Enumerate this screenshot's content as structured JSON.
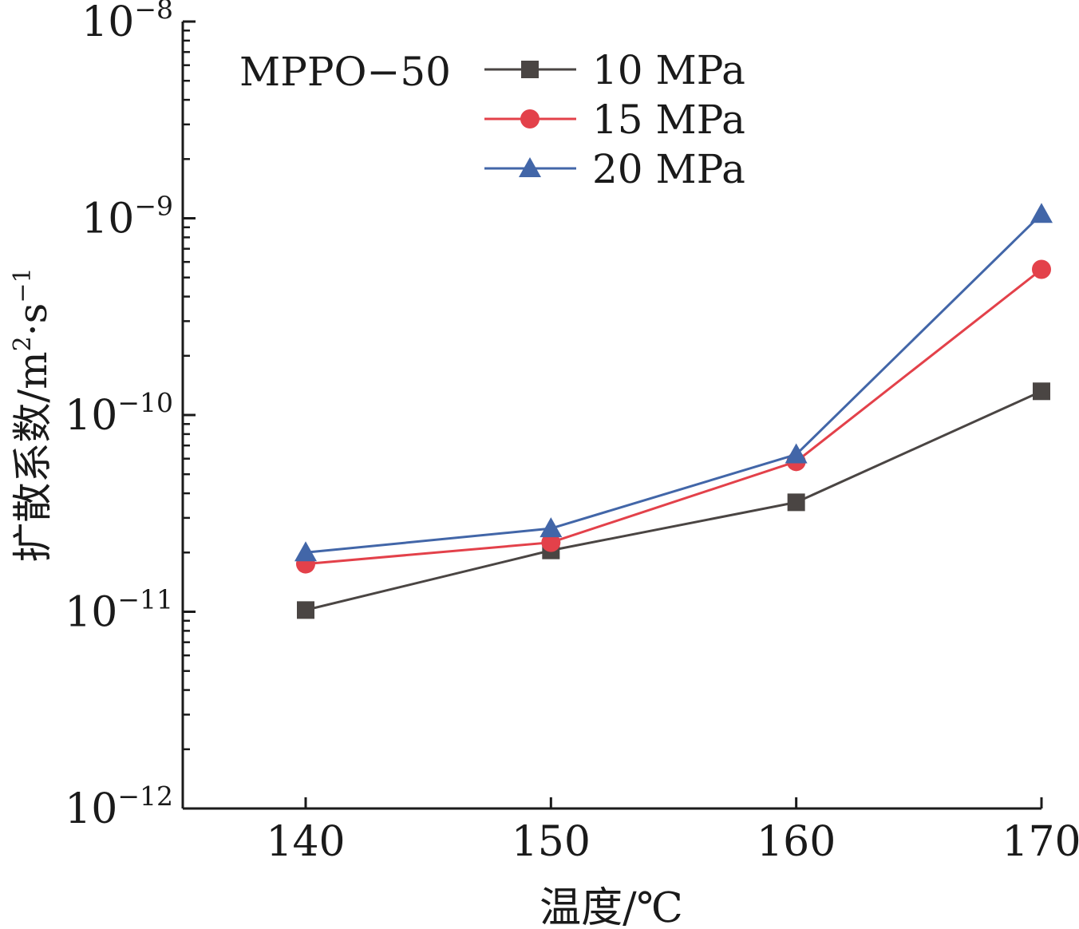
{
  "chart_data": {
    "type": "line",
    "annotation": "MPPO−50",
    "xlabel": "温度/℃",
    "ylabel_main": "扩散系数/m",
    "ylabel_sup1": "2",
    "ylabel_mid": "·s",
    "ylabel_sup2": "−1",
    "yscale": "log",
    "xlim": [
      135,
      170
    ],
    "ylim": [
      1e-12,
      1e-08
    ],
    "x": [
      140,
      150,
      160,
      170
    ],
    "x_tick_labels": [
      "140",
      "150",
      "160",
      "170"
    ],
    "y_ticks": [
      {
        "value": 1e-08,
        "base": "10",
        "exp": "−8"
      },
      {
        "value": 1e-09,
        "base": "10",
        "exp": "−9"
      },
      {
        "value": 1e-10,
        "base": "10",
        "exp": "−10"
      },
      {
        "value": 1e-11,
        "base": "10",
        "exp": "−11"
      },
      {
        "value": 1e-12,
        "base": "10",
        "exp": "−12"
      }
    ],
    "series": [
      {
        "name": "10 MPa",
        "marker": "square",
        "color": "#4a4543",
        "values": [
          1.02e-11,
          2.05e-11,
          3.6e-11,
          1.32e-10
        ]
      },
      {
        "name": "15 MPa",
        "marker": "circle",
        "color": "#e3414a",
        "values": [
          1.75e-11,
          2.25e-11,
          5.8e-11,
          5.5e-10
        ]
      },
      {
        "name": "20 MPa",
        "marker": "triangle",
        "color": "#4266a8",
        "values": [
          2e-11,
          2.65e-11,
          6.3e-11,
          1.05e-09
        ]
      }
    ],
    "legend_position": "top-left",
    "grid": false
  }
}
